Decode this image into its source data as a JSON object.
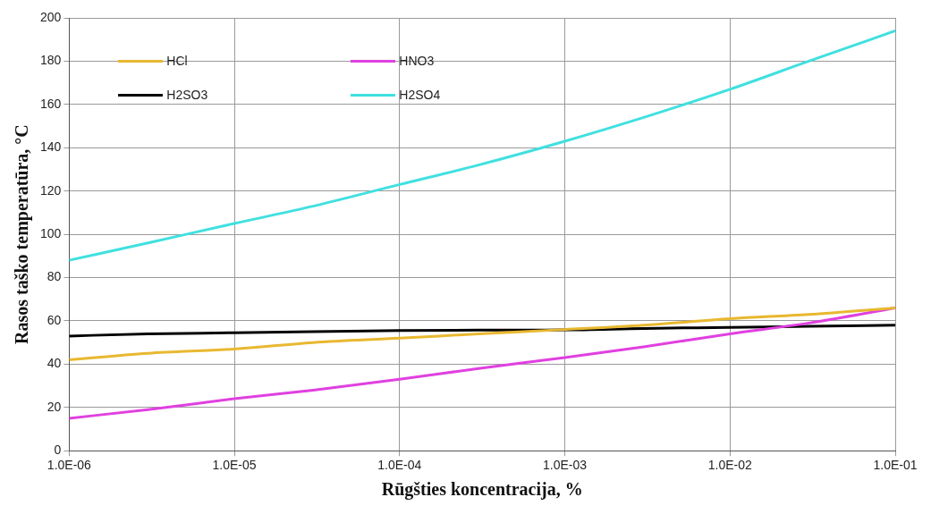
{
  "chart_data": {
    "type": "line",
    "xlabel": "Rūgšties koncentracija, %",
    "ylabel": "Rasos taško temperatūra, °C",
    "log": "x",
    "x": [
      1e-06,
      3e-06,
      1e-05,
      3e-05,
      0.0001,
      0.0003,
      0.001,
      0.003,
      0.01,
      0.03,
      0.1
    ],
    "xlim": [
      1e-06,
      0.1
    ],
    "xticks": [
      {
        "value": 1e-06,
        "label": "1.0E-06"
      },
      {
        "value": 1e-05,
        "label": "1.0E-05"
      },
      {
        "value": 0.0001,
        "label": "1.0E-04"
      },
      {
        "value": 0.001,
        "label": "1.0E-03"
      },
      {
        "value": 0.01,
        "label": "1.0E-02"
      },
      {
        "value": 0.1,
        "label": "1.0E-01"
      }
    ],
    "ylim": [
      0,
      200
    ],
    "yticks": [
      0,
      20,
      40,
      60,
      80,
      100,
      120,
      140,
      160,
      180,
      200
    ],
    "grid": true,
    "legend": "top left",
    "marker": "none",
    "line_style": "solid",
    "series": [
      {
        "name": "HCl",
        "color": "#e8b830",
        "values": [
          42,
          45,
          47,
          50,
          52,
          54,
          56,
          58,
          61,
          63,
          66
        ]
      },
      {
        "name": "HNO3",
        "color": "#e040e0",
        "values": [
          15,
          19,
          24,
          28,
          33,
          38,
          43,
          48,
          54,
          59,
          66
        ]
      },
      {
        "name": "H2SO3",
        "color": "#000000",
        "values": [
          53,
          54,
          54.5,
          55,
          55.5,
          55.7,
          55.8,
          56.5,
          57,
          57.5,
          58
        ]
      },
      {
        "name": "H2SO4",
        "color": "#40e0e0",
        "values": [
          88,
          96,
          105,
          113,
          123,
          132,
          143,
          154,
          167,
          180,
          194
        ]
      }
    ]
  }
}
